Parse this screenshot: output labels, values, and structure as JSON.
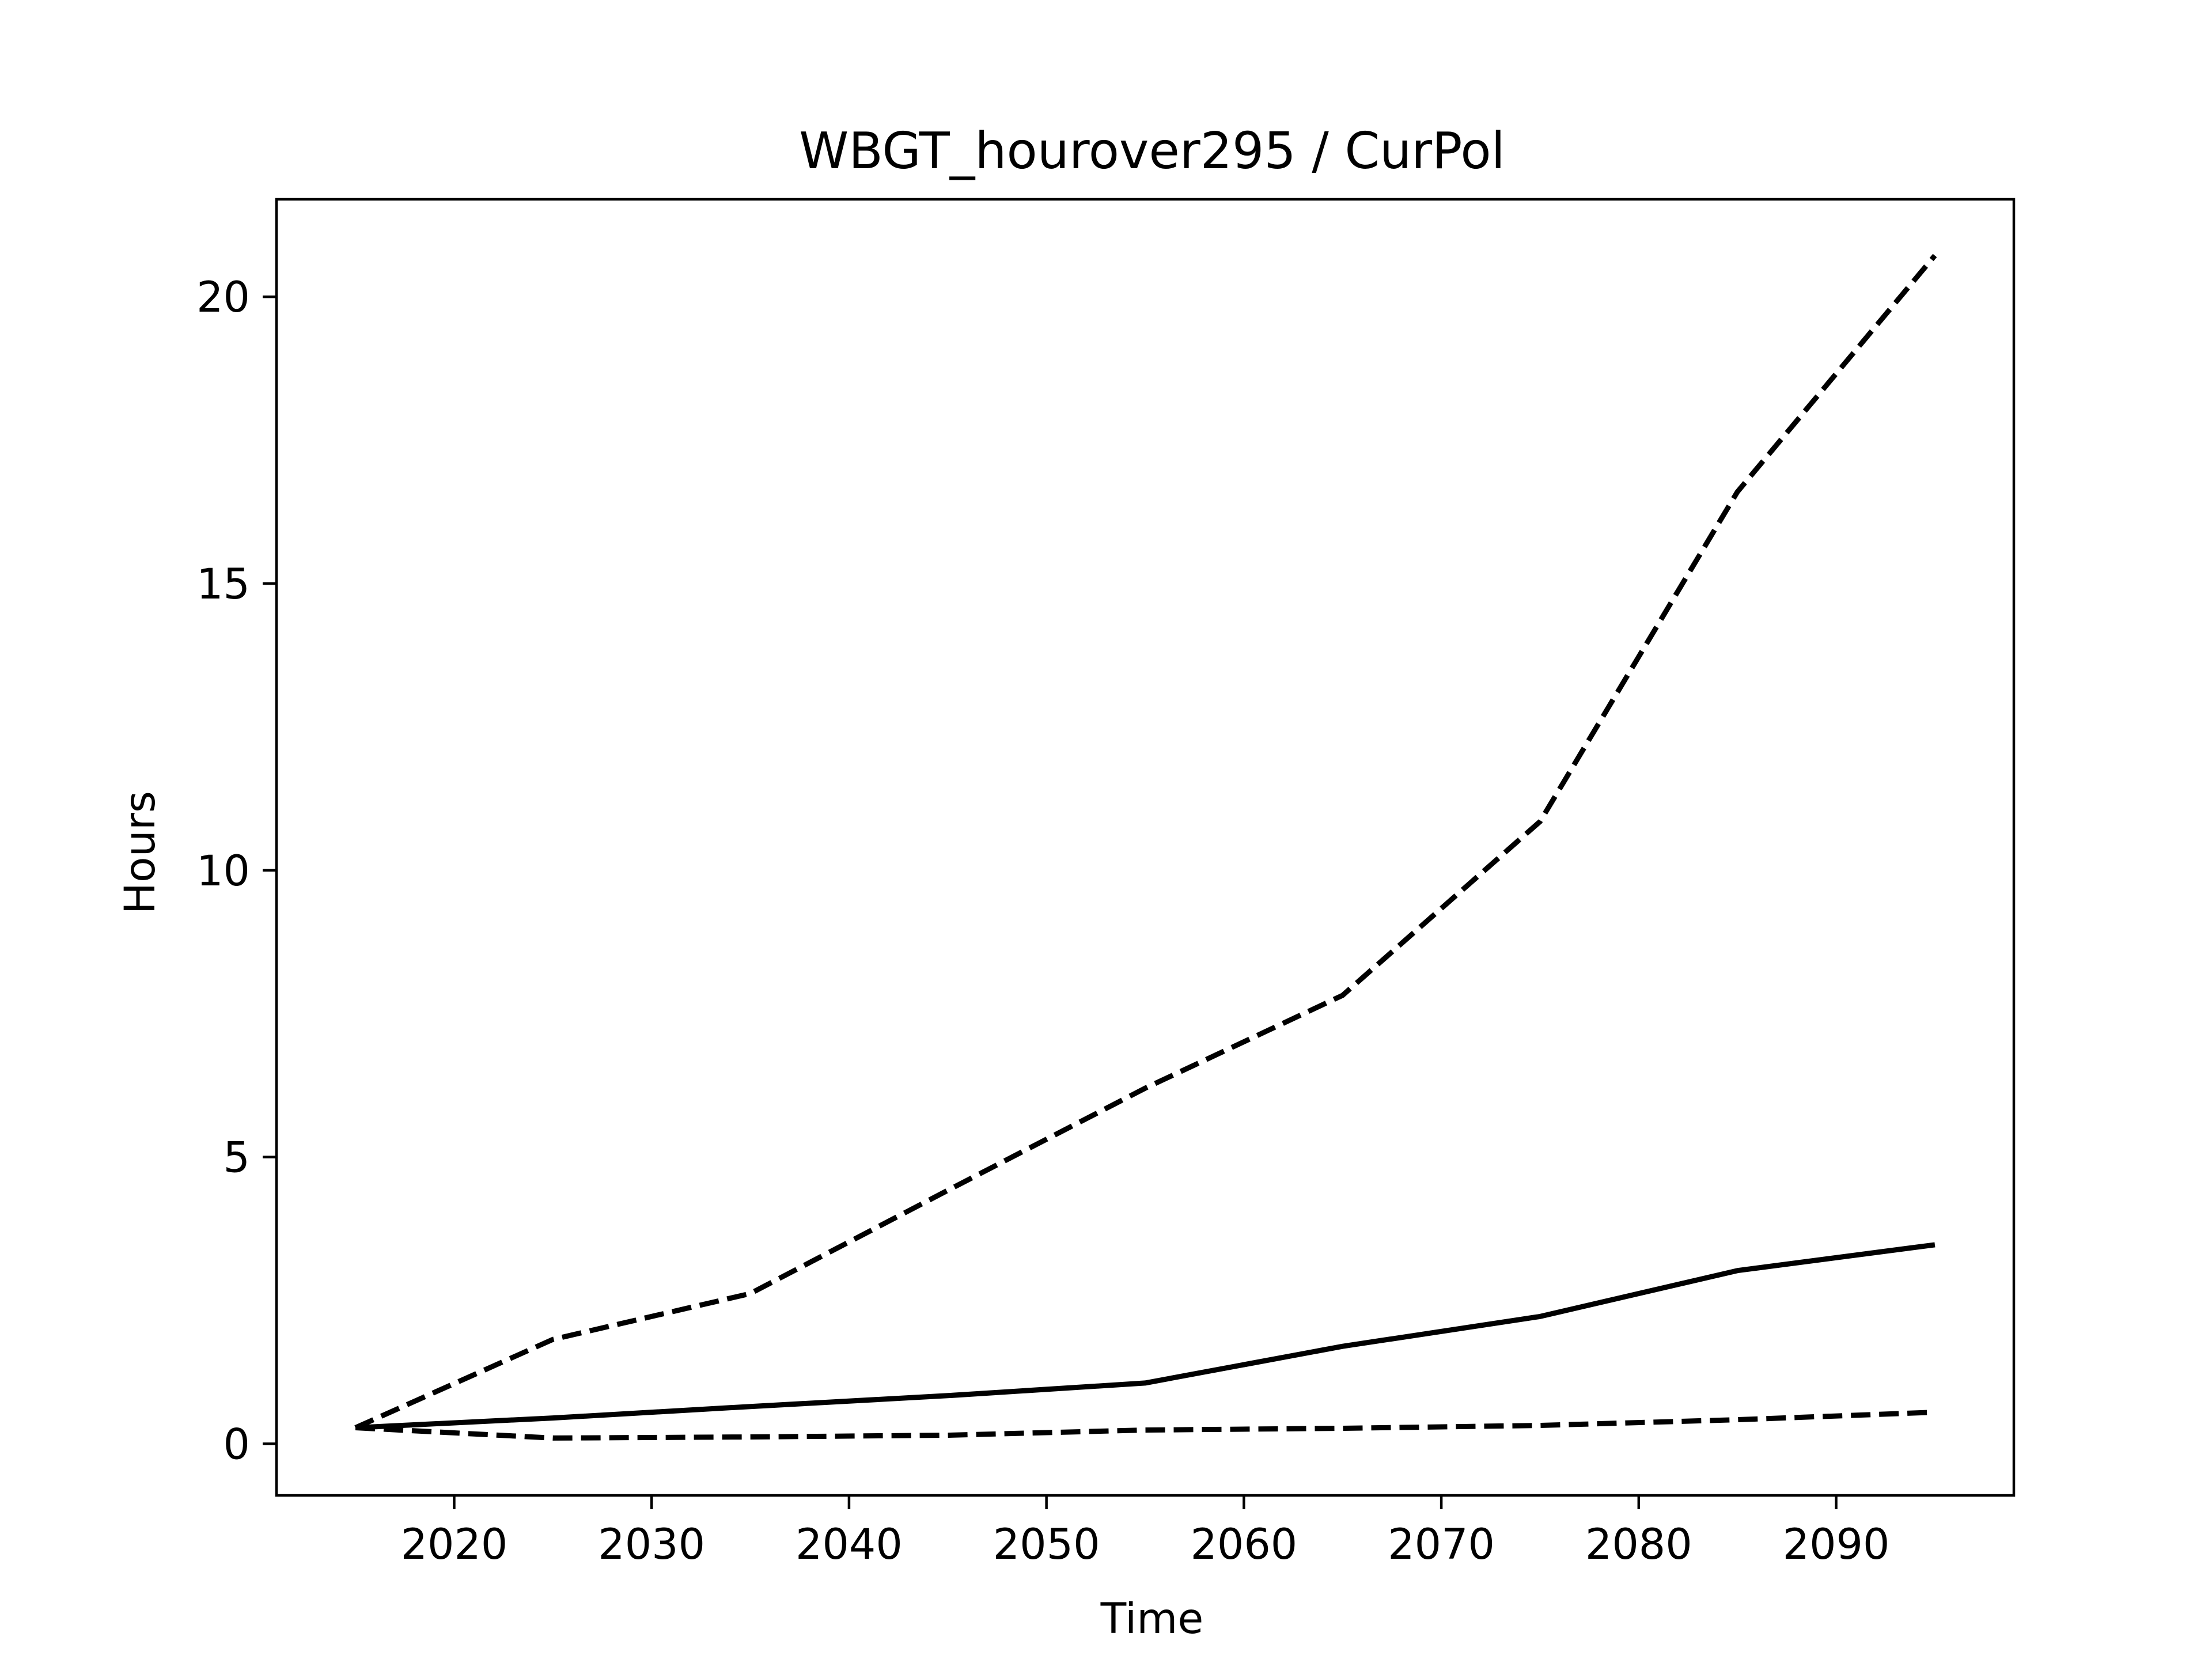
{
  "chart_data": {
    "type": "line",
    "title": "WBGT_hourover295 / CurPol",
    "xlabel": "Time",
    "ylabel": "Hours",
    "xlim": [
      2011,
      2099
    ],
    "ylim": [
      -0.9,
      21.7
    ],
    "xticks": [
      2020,
      2030,
      2040,
      2050,
      2060,
      2070,
      2080,
      2090
    ],
    "yticks": [
      0,
      5,
      10,
      15,
      20
    ],
    "grid": false,
    "legend": "none",
    "line_color": "#000000",
    "x": [
      2015,
      2025,
      2035,
      2045,
      2055,
      2065,
      2075,
      2085,
      2095
    ],
    "series": [
      {
        "style": "dashed",
        "values": [
          0.28,
          1.82,
          2.62,
          4.42,
          6.2,
          7.82,
          10.85,
          16.6,
          20.72
        ]
      },
      {
        "style": "solid",
        "values": [
          0.28,
          0.45,
          0.65,
          0.84,
          1.06,
          1.7,
          2.22,
          3.02,
          3.47
        ]
      },
      {
        "style": "dashed",
        "values": [
          0.28,
          0.1,
          0.12,
          0.15,
          0.24,
          0.27,
          0.32,
          0.42,
          0.55
        ]
      }
    ]
  }
}
